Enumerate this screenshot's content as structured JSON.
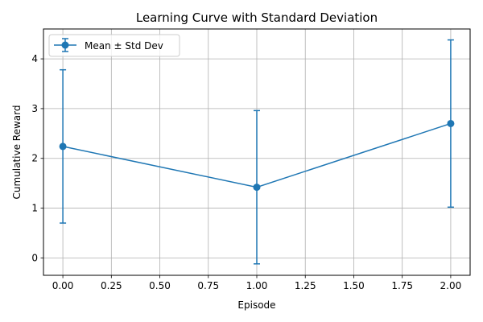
{
  "chart_data": {
    "type": "line",
    "title": "Learning Curve with Standard Deviation",
    "xlabel": "Episode",
    "ylabel": "Cumulative Reward",
    "x": [
      0,
      1,
      2
    ],
    "series": [
      {
        "name": "Mean ± Std Dev",
        "values": [
          2.24,
          1.42,
          2.7
        ],
        "std": [
          1.54,
          1.54,
          1.68
        ],
        "color": "#1f77b4"
      }
    ],
    "xlim": [
      -0.1,
      2.1
    ],
    "ylim": [
      -0.35,
      4.6
    ],
    "xticks": [
      "0.00",
      "0.25",
      "0.50",
      "0.75",
      "1.00",
      "1.25",
      "1.50",
      "1.75",
      "2.00"
    ],
    "yticks": [
      "0",
      "1",
      "2",
      "3",
      "4"
    ],
    "grid": true,
    "legend_position": "upper-left"
  }
}
